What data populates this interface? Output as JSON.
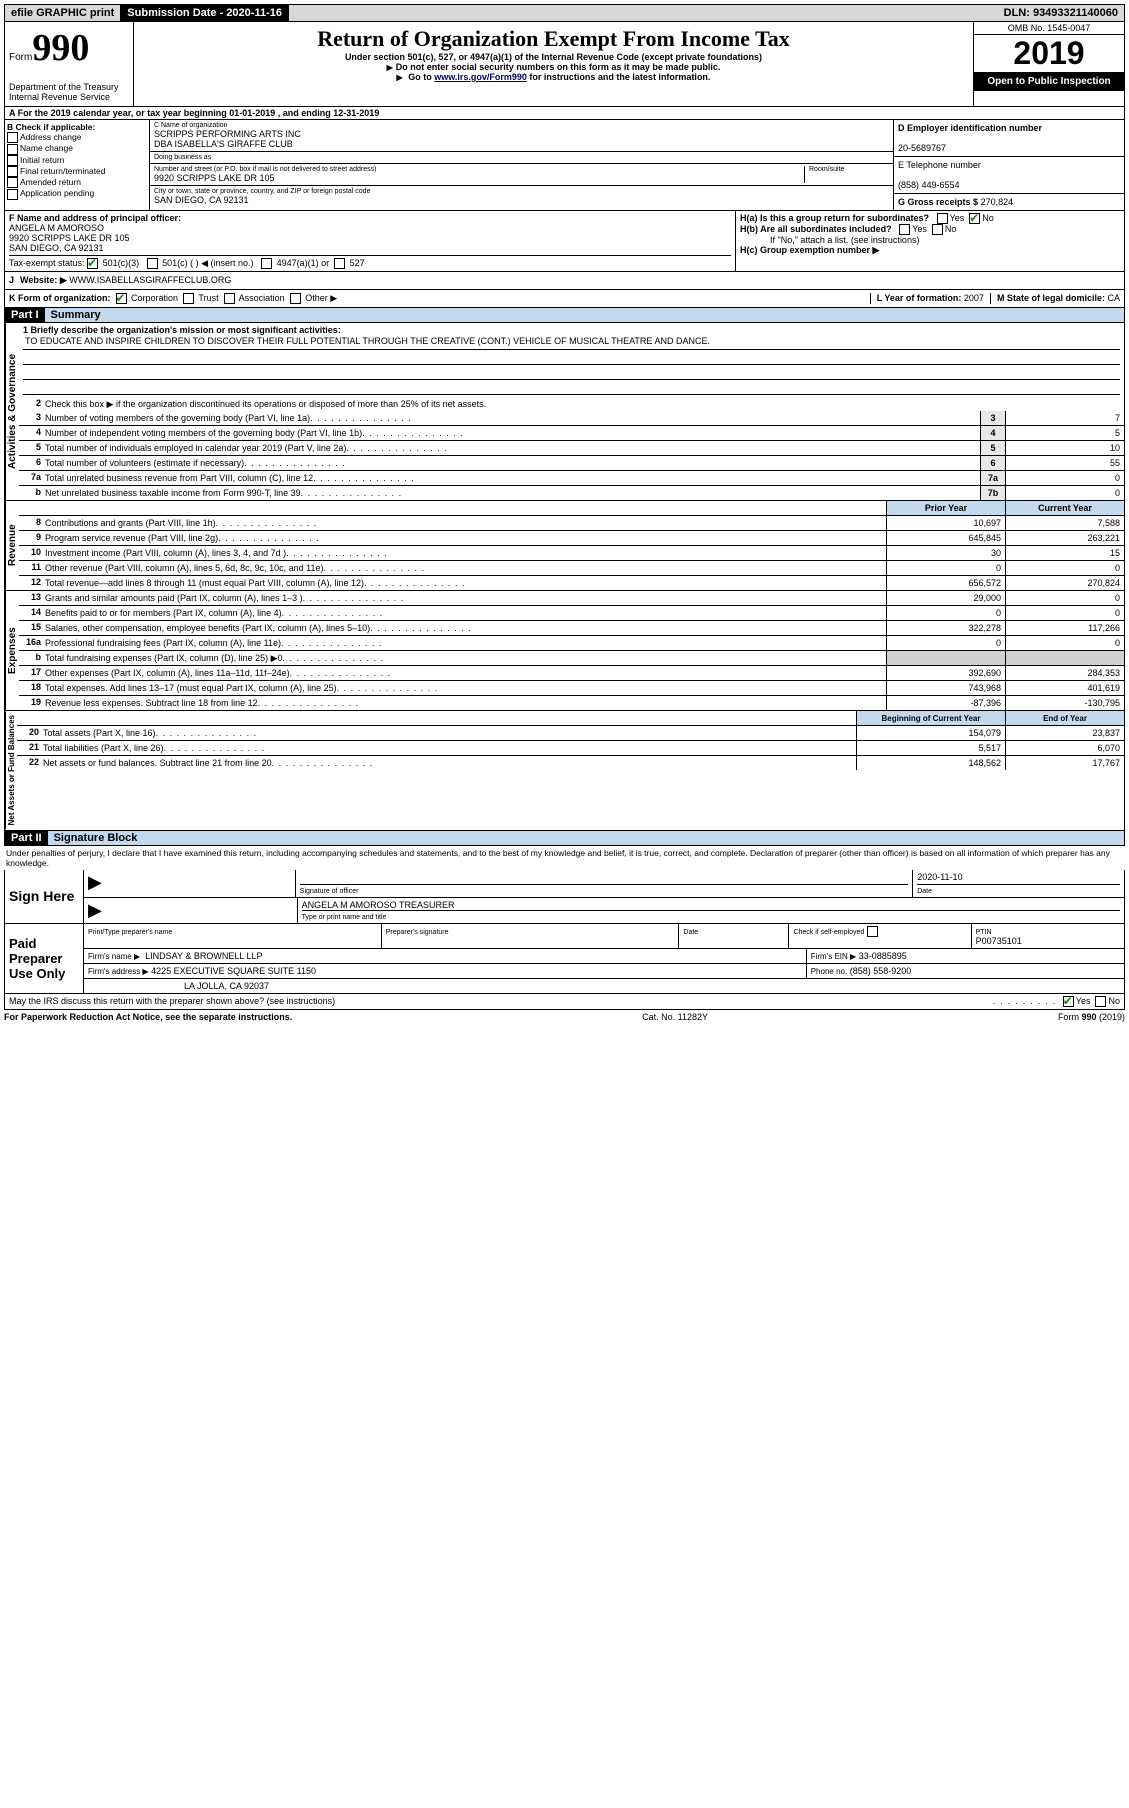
{
  "topbar": {
    "efile": "efile GRAPHIC print",
    "submission_label": "Submission Date - 2020-11-16",
    "dln": "DLN: 93493321140060"
  },
  "header": {
    "form_word": "Form",
    "form_num": "990",
    "dept": "Department of the Treasury\nInternal Revenue Service",
    "title": "Return of Organization Exempt From Income Tax",
    "sub1": "Under section 501(c), 527, or 4947(a)(1) of the Internal Revenue Code (except private foundations)",
    "sub2": "Do not enter social security numbers on this form as it may be made public.",
    "sub3_pre": "Go to ",
    "sub3_link": "www.irs.gov/Form990",
    "sub3_post": " for instructions and the latest information.",
    "omb": "OMB No. 1545-0047",
    "year": "2019",
    "open": "Open to Public Inspection"
  },
  "section_a": "A For the 2019 calendar year, or tax year beginning 01-01-2019    , and ending 12-31-2019",
  "block_b": {
    "label": "B Check if applicable:",
    "items": [
      "Address change",
      "Name change",
      "Initial return",
      "Final return/terminated",
      "Amended return",
      "Application pending"
    ]
  },
  "block_c": {
    "name_label": "C Name of organization",
    "name1": "SCRIPPS PERFORMING ARTS INC",
    "name2": "DBA ISABELLA'S GIRAFFE CLUB",
    "dba_label": "Doing business as",
    "addr_label": "Number and street (or P.O. box if mail is not delivered to street address)",
    "room_label": "Room/suite",
    "addr": "9920 SCRIPPS LAKE DR 105",
    "city_label": "City or town, state or province, country, and ZIP or foreign postal code",
    "city": "SAN DIEGO, CA  92131"
  },
  "block_d": {
    "label": "D Employer identification number",
    "val": "20-5689767"
  },
  "block_e": {
    "label": "E Telephone number",
    "val": "(858) 449-6554"
  },
  "block_g": {
    "label": "G Gross receipts $",
    "val": "270,824"
  },
  "block_f": {
    "label": "F  Name and address of principal officer:",
    "name": "ANGELA M AMOROSO",
    "addr1": "9920 SCRIPPS LAKE DR 105",
    "addr2": "SAN DIEGO, CA  92131"
  },
  "block_h": {
    "ha": "H(a)  Is this a group return for subordinates?",
    "hb": "H(b)  Are all subordinates included?",
    "hb_note": "If \"No,\" attach a list. (see instructions)",
    "hc": "H(c)  Group exemption number ▶",
    "yes": "Yes",
    "no": "No"
  },
  "tax_exempt": {
    "label": "Tax-exempt status:",
    "opt1": "501(c)(3)",
    "opt2": "501(c) (  ) ◀ (insert no.)",
    "opt3": "4947(a)(1) or",
    "opt4": "527"
  },
  "block_j": {
    "label": "J",
    "text": "Website: ▶",
    "val": "WWW.ISABELLASGIRAFFECLUB.ORG"
  },
  "block_k": {
    "label": "K Form of organization:",
    "opts": [
      "Corporation",
      "Trust",
      "Association",
      "Other ▶"
    ],
    "l_label": "L Year of formation:",
    "l_val": "2007",
    "m_label": "M State of legal domicile:",
    "m_val": "CA"
  },
  "part1": {
    "num": "Part I",
    "title": "Summary",
    "line1_label": "1  Briefly describe the organization's mission or most significant activities:",
    "mission": "TO EDUCATE AND INSPIRE CHILDREN TO DISCOVER THEIR FULL POTENTIAL THROUGH THE CREATIVE (CONT.) VEHICLE OF MUSICAL THEATRE AND DANCE.",
    "line2": "Check this box ▶        if the organization discontinued its operations or disposed of more than 25% of its net assets.",
    "vtabs": [
      "Activities & Governance",
      "Revenue",
      "Expenses",
      "Net Assets or Fund Balances"
    ],
    "col_prior": "Prior Year",
    "col_current": "Current Year",
    "col_begin": "Beginning of Current Year",
    "col_end": "End of Year",
    "rows_ag": [
      {
        "n": "3",
        "d": "Number of voting members of the governing body (Part VI, line 1a)",
        "b": "3",
        "v": "7"
      },
      {
        "n": "4",
        "d": "Number of independent voting members of the governing body (Part VI, line 1b)",
        "b": "4",
        "v": "5"
      },
      {
        "n": "5",
        "d": "Total number of individuals employed in calendar year 2019 (Part V, line 2a)",
        "b": "5",
        "v": "10"
      },
      {
        "n": "6",
        "d": "Total number of volunteers (estimate if necessary)",
        "b": "6",
        "v": "55"
      },
      {
        "n": "7a",
        "d": "Total unrelated business revenue from Part VIII, column (C), line 12",
        "b": "7a",
        "v": "0"
      },
      {
        "n": "b",
        "d": "Net unrelated business taxable income from Form 990-T, line 39",
        "b": "7b",
        "v": "0"
      }
    ],
    "rows_rev": [
      {
        "n": "8",
        "d": "Contributions and grants (Part VIII, line 1h)",
        "p": "10,697",
        "c": "7,588"
      },
      {
        "n": "9",
        "d": "Program service revenue (Part VIII, line 2g)",
        "p": "645,845",
        "c": "263,221"
      },
      {
        "n": "10",
        "d": "Investment income (Part VIII, column (A), lines 3, 4, and 7d )",
        "p": "30",
        "c": "15"
      },
      {
        "n": "11",
        "d": "Other revenue (Part VIII, column (A), lines 5, 6d, 8c, 9c, 10c, and 11e)",
        "p": "0",
        "c": "0"
      },
      {
        "n": "12",
        "d": "Total revenue—add lines 8 through 11 (must equal Part VIII, column (A), line 12)",
        "p": "656,572",
        "c": "270,824"
      }
    ],
    "rows_exp": [
      {
        "n": "13",
        "d": "Grants and similar amounts paid (Part IX, column (A), lines 1–3 )",
        "p": "29,000",
        "c": "0"
      },
      {
        "n": "14",
        "d": "Benefits paid to or for members (Part IX, column (A), line 4)",
        "p": "0",
        "c": "0"
      },
      {
        "n": "15",
        "d": "Salaries, other compensation, employee benefits (Part IX, column (A), lines 5–10)",
        "p": "322,278",
        "c": "117,266"
      },
      {
        "n": "16a",
        "d": "Professional fundraising fees (Part IX, column (A), line 11e)",
        "p": "0",
        "c": "0"
      },
      {
        "n": "b",
        "d": "Total fundraising expenses (Part IX, column (D), line 25) ▶0",
        "p": "",
        "c": "",
        "shaded": true
      },
      {
        "n": "17",
        "d": "Other expenses (Part IX, column (A), lines 11a–11d, 11f–24e)",
        "p": "392,690",
        "c": "284,353"
      },
      {
        "n": "18",
        "d": "Total expenses. Add lines 13–17 (must equal Part IX, column (A), line 25)",
        "p": "743,968",
        "c": "401,619"
      },
      {
        "n": "19",
        "d": "Revenue less expenses. Subtract line 18 from line 12",
        "p": "-87,396",
        "c": "-130,795"
      }
    ],
    "rows_na": [
      {
        "n": "20",
        "d": "Total assets (Part X, line 16)",
        "p": "154,079",
        "c": "23,837"
      },
      {
        "n": "21",
        "d": "Total liabilities (Part X, line 26)",
        "p": "5,517",
        "c": "6,070"
      },
      {
        "n": "22",
        "d": "Net assets or fund balances. Subtract line 21 from line 20",
        "p": "148,562",
        "c": "17,767"
      }
    ]
  },
  "part2": {
    "num": "Part II",
    "title": "Signature Block",
    "penalty": "Under penalties of perjury, I declare that I have examined this return, including accompanying schedules and statements, and to the best of my knowledge and belief, it is true, correct, and complete. Declaration of preparer (other than officer) is based on all information of which preparer has any knowledge.",
    "sign_here": "Sign Here",
    "sig_officer": "Signature of officer",
    "sig_date_label": "Date",
    "sig_date": "2020-11-10",
    "sig_name": "ANGELA M AMOROSO  TREASURER",
    "sig_name_label": "Type or print name and title",
    "paid": "Paid Preparer Use Only",
    "prep_name_label": "Print/Type preparer's name",
    "prep_sig_label": "Preparer's signature",
    "prep_date_label": "Date",
    "prep_check": "Check        if self-employed",
    "ptin_label": "PTIN",
    "ptin": "P00735101",
    "firm_name_label": "Firm's name    ▶",
    "firm_name": "LINDSAY & BROWNELL LLP",
    "firm_ein_label": "Firm's EIN ▶",
    "firm_ein": "33-0885895",
    "firm_addr_label": "Firm's address ▶",
    "firm_addr1": "4225 EXECUTIVE SQUARE SUITE 1150",
    "firm_addr2": "LA JOLLA, CA  92037",
    "phone_label": "Phone no.",
    "phone": "(858) 558-9200",
    "discuss": "May the IRS discuss this return with the preparer shown above? (see instructions)",
    "yes": "Yes",
    "no": "No"
  },
  "footer": {
    "left": "For Paperwork Reduction Act Notice, see the separate instructions.",
    "mid": "Cat. No. 11282Y",
    "right": "Form 990 (2019)"
  }
}
